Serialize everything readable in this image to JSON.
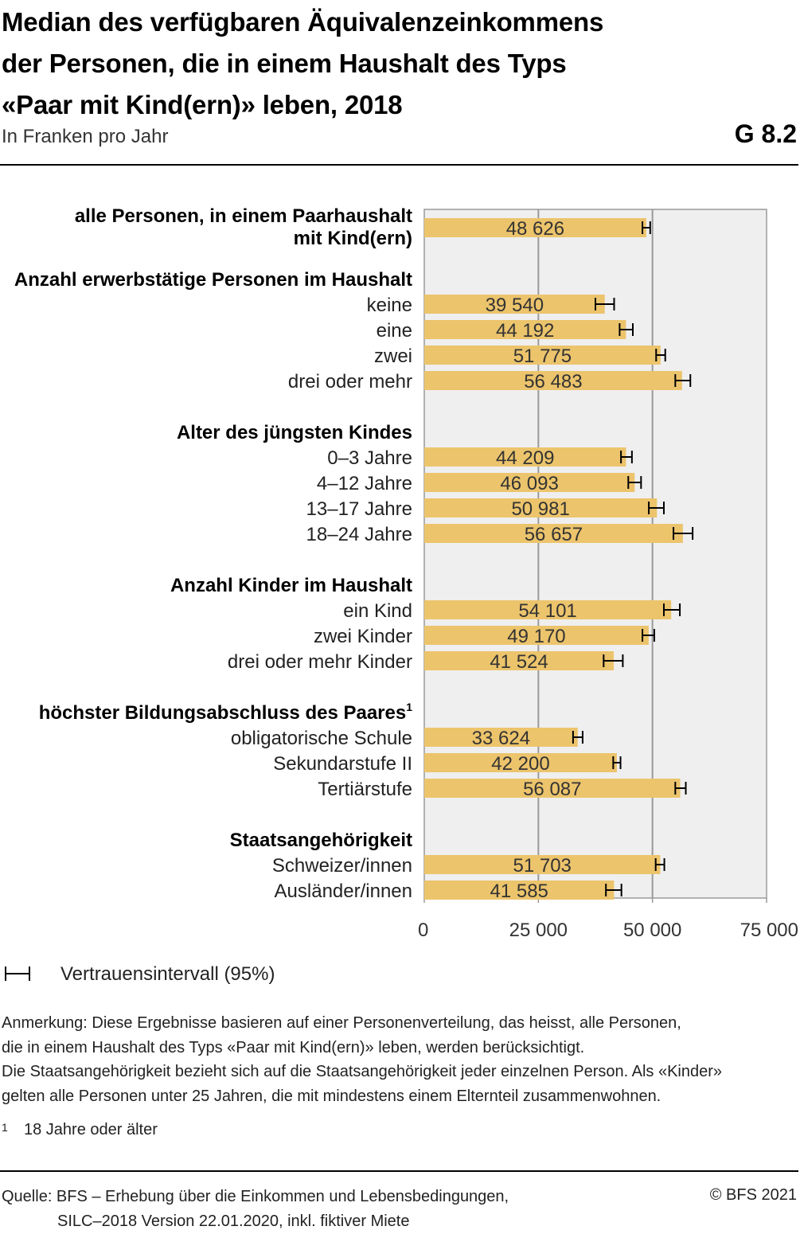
{
  "header": {
    "title_lines": [
      "Median des verfügbaren Äquivalenzeinkommens",
      "der Personen, die in einem Haushalt des Typs",
      "«Paar mit Kind(ern)» leben, 2018"
    ],
    "subtitle": "In Franken pro Jahr",
    "graph_number": "G 8.2"
  },
  "chart_data": {
    "type": "bar",
    "orientation": "horizontal",
    "xlim": [
      0,
      75000
    ],
    "x_ticks": [
      0,
      25000,
      50000,
      75000
    ],
    "x_tick_labels": [
      "0",
      "25 000",
      "50 000",
      "75 000"
    ],
    "grid": true,
    "bar_color": "#ecc46c",
    "plot_background": "#efefef",
    "rows": [
      {
        "kind": "bar",
        "label": "alle Personen, in einem Paarhaushalt mit Kind(ern)",
        "label_lines": [
          "alle Personen, in einem Paarhaushalt",
          "mit Kind(ern)"
        ],
        "bold": true,
        "value": 48626,
        "value_label": "48 626",
        "ci": [
          47800,
          49500
        ]
      },
      {
        "kind": "header",
        "label": "Anzahl erwerbstätige Personen im Haushalt"
      },
      {
        "kind": "bar",
        "label": "keine",
        "value": 39540,
        "value_label": "39 540",
        "ci": [
          37500,
          41600
        ]
      },
      {
        "kind": "bar",
        "label": "eine",
        "value": 44192,
        "value_label": "44 192",
        "ci": [
          42800,
          45700
        ]
      },
      {
        "kind": "bar",
        "label": "zwei",
        "value": 51775,
        "value_label": "51 775",
        "ci": [
          50800,
          52800
        ]
      },
      {
        "kind": "bar",
        "label": "drei oder mehr",
        "value": 56483,
        "value_label": "56 483",
        "ci": [
          55000,
          58300
        ]
      },
      {
        "kind": "header",
        "label": "Alter des jüngsten Kindes"
      },
      {
        "kind": "bar",
        "label": "0–3 Jahre",
        "value": 44209,
        "value_label": "44 209",
        "ci": [
          43100,
          45500
        ]
      },
      {
        "kind": "bar",
        "label": "4–12 Jahre",
        "value": 46093,
        "value_label": "46 093",
        "ci": [
          44700,
          47500
        ]
      },
      {
        "kind": "bar",
        "label": "13–17 Jahre",
        "value": 50981,
        "value_label": "50 981",
        "ci": [
          49200,
          52500
        ]
      },
      {
        "kind": "bar",
        "label": "18–24 Jahre",
        "value": 56657,
        "value_label": "56 657",
        "ci": [
          54600,
          58800
        ]
      },
      {
        "kind": "header",
        "label": "Anzahl Kinder im Haushalt"
      },
      {
        "kind": "bar",
        "label": "ein Kind",
        "value": 54101,
        "value_label": "54 101",
        "ci": [
          52500,
          56000
        ]
      },
      {
        "kind": "bar",
        "label": "zwei Kinder",
        "value": 49170,
        "value_label": "49 170",
        "ci": [
          47800,
          50400
        ]
      },
      {
        "kind": "bar",
        "label": "drei oder mehr Kinder",
        "value": 41524,
        "value_label": "41 524",
        "ci": [
          39300,
          43500
        ]
      },
      {
        "kind": "header",
        "label": "höchster Bildungsabschluss des Paares",
        "footnote": "1"
      },
      {
        "kind": "bar",
        "label": "obligatorische Schule",
        "value": 33624,
        "value_label": "33 624",
        "ci": [
          32600,
          34700
        ]
      },
      {
        "kind": "bar",
        "label": "Sekundarstufe II",
        "value": 42200,
        "value_label": "42 200",
        "ci": [
          41400,
          43000
        ]
      },
      {
        "kind": "bar",
        "label": "Tertiärstufe",
        "value": 56087,
        "value_label": "56 087",
        "ci": [
          55000,
          57300
        ]
      },
      {
        "kind": "header",
        "label": "Staatsangehörigkeit"
      },
      {
        "kind": "bar",
        "label": "Schweizer/innen",
        "value": 51703,
        "value_label": "51 703",
        "ci": [
          50700,
          52600
        ]
      },
      {
        "kind": "bar",
        "label": "Ausländer/innen",
        "value": 41585,
        "value_label": "41 585",
        "ci": [
          39800,
          43200
        ]
      }
    ]
  },
  "legend": {
    "ci_icon": "confidence-interval-icon",
    "ci_label": "Vertrauensintervall (95%)"
  },
  "note": {
    "lines": [
      "Anmerkung: Diese Ergebnisse basieren auf einer Personenverteilung, das heisst, alle Personen,",
      "die in einem Haushalt des Typs «Paar mit Kind(ern)» leben, werden berücksichtigt.",
      "Die Staatsangehörigkeit bezieht sich auf die Staatsangehörigkeit jeder einzelnen Person. Als «Kinder»",
      "gelten alle Personen unter 25 Jahren, die mit mindestens einem Elternteil zusammenwohnen."
    ]
  },
  "footnote": {
    "mark": "1",
    "text": "18 Jahre oder älter"
  },
  "source": {
    "lines": [
      "Quelle: BFS – Erhebung über die Einkommen und Lebensbedingungen,",
      "SILC–2018 Version 22.01.2020, inkl. fiktiver Miete"
    ]
  },
  "copyright": "© BFS 2021"
}
